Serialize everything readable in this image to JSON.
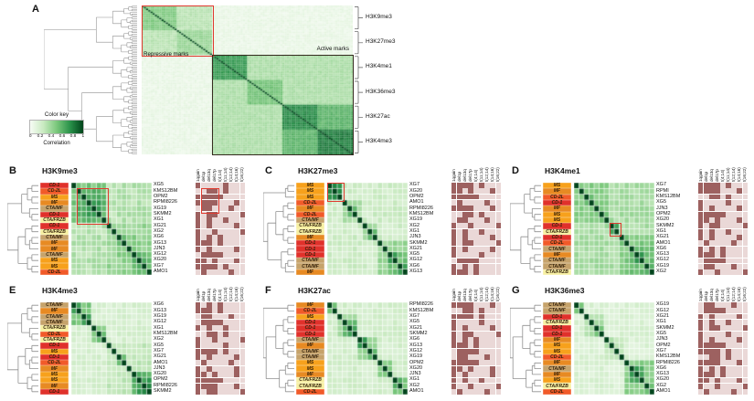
{
  "panel_a": {
    "letter": "A",
    "mark_labels": [
      "H3K9me3",
      "H3K27me3",
      "H3K4me1",
      "H3K36me3",
      "H3K27ac",
      "H3K4me3"
    ],
    "repressive_label": "Repressive marks",
    "active_label": "Active marks",
    "color_key": {
      "title": "Color key",
      "ticks": [
        "0",
        "0.2",
        "0.4",
        "0.6",
        "0.8",
        "1"
      ],
      "label": "Correlation"
    }
  },
  "annotation_columns": [
    "1qgain",
    "del1p",
    "del13q",
    "del17p",
    "t(4;14)",
    "t(11;14)",
    "t(12;14)",
    "t(14;16)",
    "t(16;22)"
  ],
  "subgroups": {
    "XG5": "CD-1",
    "KMS12BM": "CD-2L",
    "OPM2": "MS",
    "RPMI8226": "MF",
    "RPMI": "MF",
    "XG19": "CTA/MF",
    "SKMM2": "CD-1",
    "XG1": "CTA/FRZB",
    "XG21": "CD-1",
    "XG2": "CTA/FRZB",
    "XG6": "CTA/MF",
    "XG13": "MF",
    "JJN3": "MF",
    "XG12": "CTA/MF",
    "XG20": "MS",
    "XG7": "MS",
    "AMO1": "CD-2L"
  },
  "cytogenetics": {
    "XG7": [
      1,
      1,
      1,
      1,
      0,
      1,
      0,
      0,
      0
    ],
    "XG20": [
      1,
      1,
      0,
      1,
      0,
      0,
      0,
      1,
      0
    ],
    "OPM2": [
      1,
      1,
      1,
      1,
      1,
      0,
      0,
      0,
      0
    ],
    "AMO1": [
      0,
      1,
      0,
      0,
      0,
      0,
      1,
      0,
      0
    ],
    "RPMI8226": [
      1,
      1,
      1,
      1,
      0,
      0,
      0,
      1,
      0
    ],
    "RPMI": [
      1,
      1,
      1,
      1,
      0,
      0,
      0,
      1,
      0
    ],
    "KMS12BM": [
      0,
      0,
      1,
      1,
      0,
      1,
      0,
      0,
      0
    ],
    "XG19": [
      0,
      1,
      1,
      0,
      0,
      0,
      1,
      0,
      0
    ],
    "XG2": [
      1,
      0,
      0,
      1,
      0,
      0,
      0,
      0,
      1
    ],
    "XG1": [
      1,
      0,
      1,
      0,
      0,
      1,
      0,
      0,
      0
    ],
    "JJN3": [
      1,
      0,
      1,
      0,
      0,
      0,
      0,
      1,
      0
    ],
    "SKMM2": [
      1,
      0,
      1,
      1,
      0,
      0,
      0,
      0,
      1
    ],
    "XG21": [
      1,
      0,
      1,
      0,
      0,
      0,
      0,
      1,
      0
    ],
    "XG5": [
      1,
      0,
      0,
      0,
      0,
      1,
      0,
      0,
      0
    ],
    "XG12": [
      0,
      1,
      1,
      1,
      1,
      0,
      0,
      0,
      0
    ],
    "XG6": [
      1,
      0,
      1,
      0,
      1,
      0,
      0,
      0,
      0
    ],
    "XG13": [
      1,
      1,
      1,
      0,
      1,
      0,
      0,
      0,
      0
    ]
  },
  "colors": {
    "group_colors": {
      "CD-1": "#e0312b",
      "CD-2L": "#f15a29",
      "MS": "#f7a11c",
      "MF": "#e78a23",
      "CTA/MF": "#c6a36b",
      "CTA/FRZB": "#f7f0a2"
    },
    "heat_stops": [
      [
        0,
        "#f7fcf5"
      ],
      [
        0.25,
        "#c9eac1"
      ],
      [
        0.5,
        "#7bc87c"
      ],
      [
        0.75,
        "#2a924a"
      ],
      [
        1,
        "#00441b"
      ]
    ],
    "anno_on": "#9d6160",
    "anno_off": "#ead8d7",
    "highlight_red": "#e03a2f",
    "active_box": "#372c21",
    "dendro": "#8f8f8f"
  },
  "chart_data": [
    {
      "panel": "A",
      "type": "heatmap",
      "n": 96,
      "mark_blocks": [
        {
          "label": "H3K9me3",
          "rows": [
            0,
            15
          ]
        },
        {
          "label": "H3K27me3",
          "rows": [
            16,
            31
          ]
        },
        {
          "label": "H3K4me1",
          "rows": [
            32,
            47
          ]
        },
        {
          "label": "H3K36me3",
          "rows": [
            48,
            63
          ]
        },
        {
          "label": "H3K27ac",
          "rows": [
            64,
            79
          ]
        },
        {
          "label": "H3K4me3",
          "rows": [
            80,
            95
          ]
        }
      ],
      "value_range": [
        0,
        1
      ],
      "heat": {
        "base": 0.07,
        "jitter": 0.08,
        "blocks": [
          [
            0,
            31,
            0.3
          ],
          [
            0,
            15,
            0.48
          ],
          [
            16,
            31,
            0.4
          ],
          [
            32,
            95,
            0.34
          ],
          [
            32,
            47,
            0.72
          ],
          [
            48,
            63,
            0.52
          ],
          [
            64,
            95,
            0.6
          ],
          [
            64,
            79,
            0.78
          ],
          [
            80,
            95,
            0.82
          ]
        ]
      },
      "splits": [
        32,
        16,
        48,
        64,
        80
      ]
    },
    {
      "panel": "B",
      "letter": "B",
      "type": "heatmap",
      "title": "H3K9me3",
      "rows": [
        "XG5",
        "KMS12BM",
        "OPM2",
        "RPMI8226",
        "XG19",
        "SKMM2",
        "XG1",
        "XG21",
        "XG2",
        "XG6",
        "XG13",
        "JJN3",
        "XG12",
        "XG20",
        "XG7",
        "AMO1"
      ],
      "heat": {
        "base": 0.32,
        "jitter": 0.14,
        "blocks": [
          [
            0,
            6,
            0.5
          ],
          [
            1,
            6,
            0.6
          ],
          [
            2,
            5,
            0.68
          ],
          [
            7,
            15,
            0.42
          ],
          [
            9,
            12,
            0.5
          ],
          [
            12,
            15,
            0.55
          ],
          [
            13,
            14,
            0.7
          ]
        ]
      },
      "splits": [
        7
      ],
      "highlight_heat": [
        1,
        1,
        6,
        6
      ],
      "highlight_anno": [
        1,
        1,
        4,
        3
      ]
    },
    {
      "panel": "C",
      "letter": "C",
      "type": "heatmap",
      "title": "H3K27me3",
      "rows": [
        "XG7",
        "XG20",
        "OPM2",
        "AMO1",
        "RPMI8226",
        "KMS12BM",
        "XG19",
        "XG2",
        "XG1",
        "JJN3",
        "SKMM2",
        "XG21",
        "XG5",
        "XG12",
        "XG6",
        "XG13"
      ],
      "heat": {
        "base": 0.22,
        "jitter": 0.12,
        "blocks": [
          [
            0,
            2,
            0.78
          ],
          [
            3,
            6,
            0.35
          ],
          [
            4,
            5,
            0.55
          ],
          [
            7,
            9,
            0.4
          ],
          [
            8,
            9,
            0.6
          ],
          [
            10,
            15,
            0.4
          ],
          [
            12,
            15,
            0.55
          ],
          [
            12,
            13,
            0.65
          ],
          [
            14,
            15,
            0.7
          ]
        ]
      },
      "splits": [
        3
      ],
      "highlight_heat": [
        0,
        0,
        2,
        2
      ]
    },
    {
      "panel": "D",
      "letter": "D",
      "type": "heatmap",
      "title": "H3K4me1",
      "rows": [
        "XG7",
        "RPMI",
        "KMS12BM",
        "XG5",
        "JJN3",
        "OPM2",
        "XG20",
        "SKMM2",
        "XG1",
        "XG21",
        "AMO1",
        "XG6",
        "XG13",
        "XG12",
        "XG19",
        "XG2"
      ],
      "heat": {
        "base": 0.36,
        "jitter": 0.12,
        "blocks": [
          [
            0,
            6,
            0.46
          ],
          [
            2,
            3,
            0.6
          ],
          [
            5,
            6,
            0.58
          ],
          [
            7,
            8,
            0.68
          ],
          [
            9,
            15,
            0.48
          ],
          [
            11,
            15,
            0.56
          ],
          [
            12,
            13,
            0.68
          ],
          [
            14,
            15,
            0.62
          ]
        ]
      },
      "splits": [
        7
      ],
      "highlight_heat": [
        7,
        7,
        8,
        8
      ]
    },
    {
      "panel": "E",
      "letter": "E",
      "type": "heatmap",
      "title": "H3K4me3",
      "rows": [
        "XG6",
        "XG13",
        "XG19",
        "XG12",
        "XG1",
        "KMS12BM",
        "XG2",
        "XG5",
        "XG7",
        "XG21",
        "AMO1",
        "JJN3",
        "XG20",
        "OPM2",
        "RPMI8226",
        "SKMM2"
      ],
      "heat": {
        "base": 0.18,
        "jitter": 0.1,
        "blocks": [
          [
            0,
            3,
            0.5
          ],
          [
            0,
            1,
            0.68
          ],
          [
            2,
            3,
            0.72
          ],
          [
            4,
            6,
            0.45
          ],
          [
            5,
            6,
            0.6
          ],
          [
            7,
            15,
            0.28
          ],
          [
            9,
            10,
            0.5
          ],
          [
            12,
            15,
            0.6
          ],
          [
            13,
            15,
            0.72
          ],
          [
            14,
            15,
            0.8
          ]
        ]
      },
      "splits": [
        7
      ]
    },
    {
      "panel": "F",
      "letter": "F",
      "type": "heatmap",
      "title": "H3K27ac",
      "rows": [
        "RPMI8226",
        "KMS12BM",
        "XG7",
        "XG5",
        "XG21",
        "SKMM2",
        "XG6",
        "XG13",
        "XG12",
        "XG19",
        "OPM2",
        "XG20",
        "JJN3",
        "XG1",
        "XG2",
        "AMO1"
      ],
      "heat": {
        "base": 0.2,
        "jitter": 0.1,
        "blocks": [
          [
            0,
            1,
            0.52
          ],
          [
            2,
            5,
            0.4
          ],
          [
            3,
            5,
            0.55
          ],
          [
            4,
            5,
            0.65
          ],
          [
            6,
            9,
            0.45
          ],
          [
            6,
            7,
            0.68
          ],
          [
            8,
            9,
            0.6
          ],
          [
            10,
            12,
            0.48
          ],
          [
            13,
            15,
            0.5
          ],
          [
            13,
            14,
            0.68
          ]
        ]
      },
      "splits": [
        2
      ]
    },
    {
      "panel": "G",
      "letter": "G",
      "type": "heatmap",
      "title": "H3K36me3",
      "rows": [
        "XG19",
        "XG12",
        "XG21",
        "XG1",
        "SKMM2",
        "XG5",
        "JJN3",
        "OPM2",
        "XG7",
        "KMS12BM",
        "RPMI8226",
        "XG6",
        "XG13",
        "XG20",
        "XG2",
        "AMO1"
      ],
      "heat": {
        "base": 0.16,
        "jitter": 0.1,
        "blocks": [
          [
            0,
            1,
            0.5
          ],
          [
            2,
            5,
            0.34
          ],
          [
            4,
            5,
            0.5
          ],
          [
            6,
            9,
            0.3
          ],
          [
            10,
            15,
            0.45
          ],
          [
            11,
            13,
            0.62
          ],
          [
            11,
            12,
            0.72
          ],
          [
            14,
            15,
            0.55
          ]
        ]
      },
      "splits": [
        2
      ]
    }
  ]
}
